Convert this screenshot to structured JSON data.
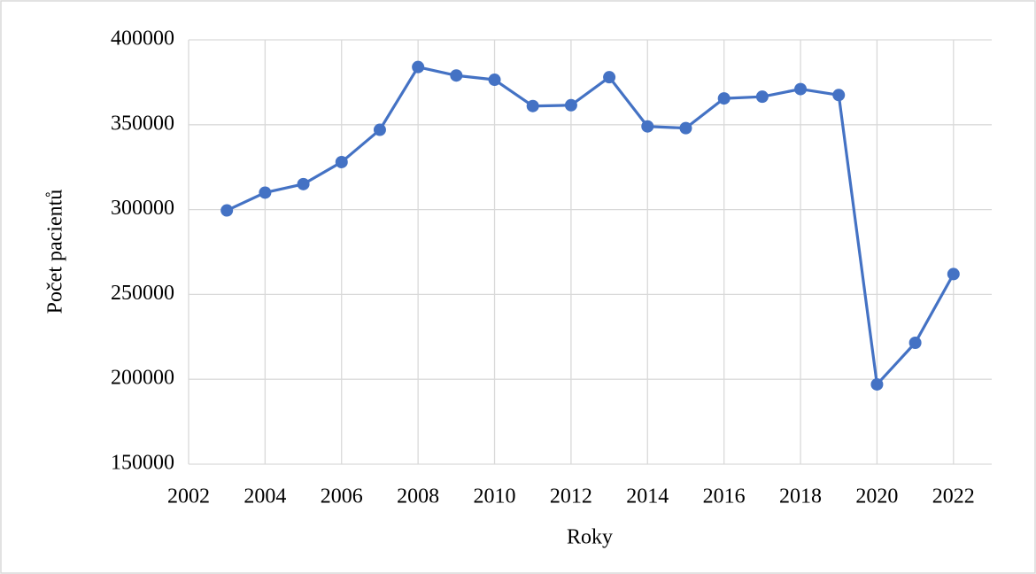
{
  "chart_data": {
    "type": "line",
    "x_label": "Roky",
    "y_label": "Počet pacientů",
    "x": [
      2003,
      2004,
      2005,
      2006,
      2007,
      2008,
      2009,
      2010,
      2011,
      2012,
      2013,
      2014,
      2015,
      2016,
      2017,
      2018,
      2019,
      2020,
      2021,
      2022
    ],
    "series": [
      {
        "name": "Počet pacientů",
        "color": "#4472c4",
        "values": [
          299500,
          310000,
          315000,
          328000,
          347000,
          384000,
          379000,
          376500,
          361000,
          361500,
          378000,
          349000,
          348000,
          365500,
          366500,
          371000,
          367500,
          197000,
          221500,
          262000
        ]
      }
    ],
    "xlim": [
      2002,
      2023
    ],
    "xticks": [
      2002,
      2004,
      2006,
      2008,
      2010,
      2012,
      2014,
      2016,
      2018,
      2020,
      2022
    ],
    "ylim": [
      150000,
      400000
    ],
    "yticks": [
      150000,
      200000,
      250000,
      300000,
      350000,
      400000
    ],
    "grid": true
  }
}
